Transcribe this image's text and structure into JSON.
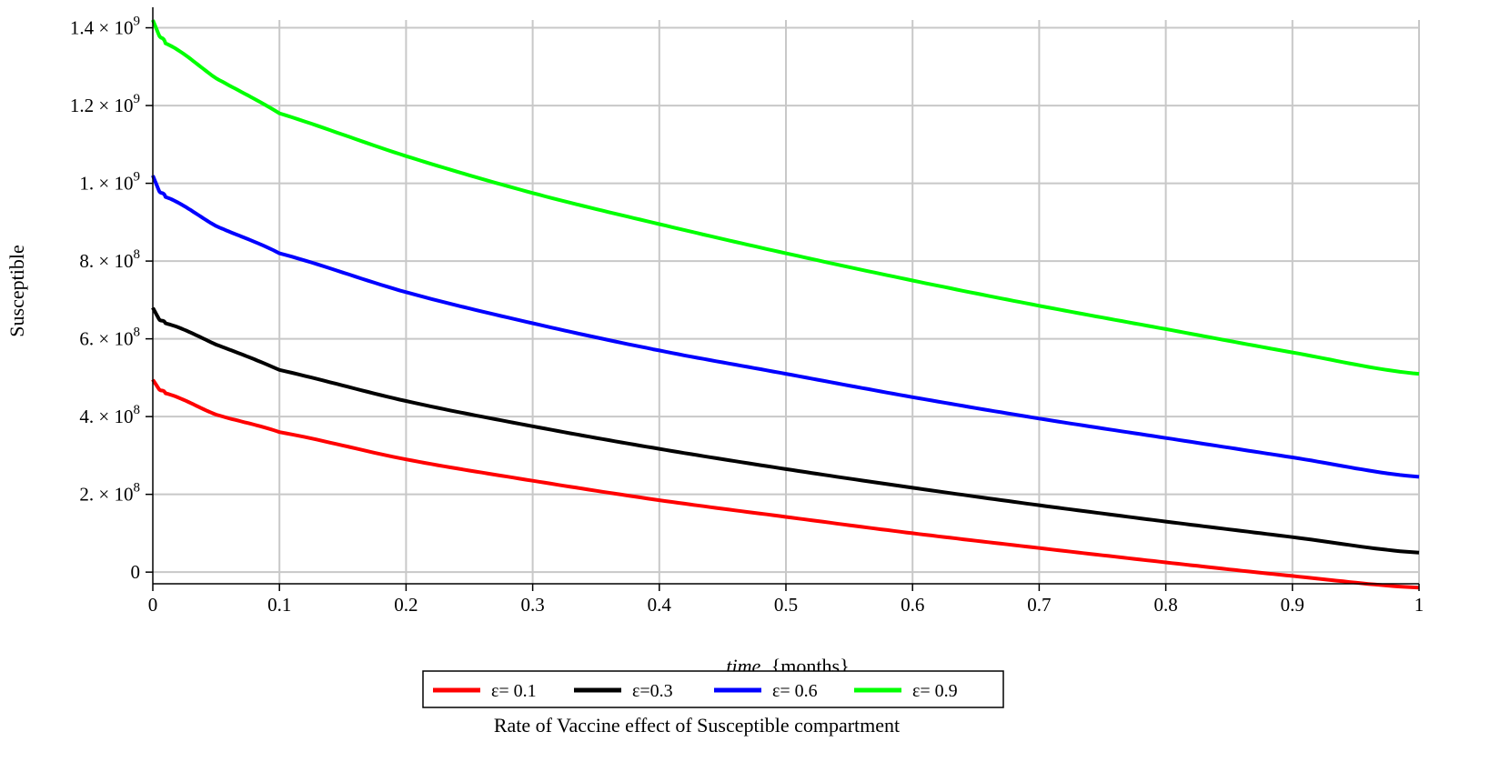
{
  "chart_data": {
    "type": "line",
    "title": "",
    "xlabel": "time {months}",
    "xlabel_parts": {
      "main": "time",
      "unit": "{months}"
    },
    "ylabel": "Susceptible",
    "xlim": [
      0,
      1
    ],
    "ylim": [
      -30000000.0,
      1420000000.0
    ],
    "grid": true,
    "x_ticks": [
      0,
      0.1,
      0.2,
      0.3,
      0.4,
      0.5,
      0.6,
      0.7,
      0.8,
      0.9,
      1
    ],
    "x_tick_labels": [
      "0",
      "0.1",
      "0.2",
      "0.3",
      "0.4",
      "0.5",
      "0.6",
      "0.7",
      "0.8",
      "0.9",
      "1"
    ],
    "y_ticks": [
      0,
      200000000.0,
      400000000.0,
      600000000.0,
      800000000.0,
      1000000000.0,
      1200000000.0,
      1400000000.0
    ],
    "y_tick_labels": [
      {
        "mant": "0",
        "exp": ""
      },
      {
        "mant": "2. × 10",
        "exp": "8"
      },
      {
        "mant": "4. × 10",
        "exp": "8"
      },
      {
        "mant": "6. × 10",
        "exp": "8"
      },
      {
        "mant": "8. × 10",
        "exp": "8"
      },
      {
        "mant": "1. × 10",
        "exp": "9"
      },
      {
        "mant": "1.2 × 10",
        "exp": "9"
      },
      {
        "mant": "1.4 × 10",
        "exp": "9"
      }
    ],
    "legend_title": "Rate of Vaccine effect of Susceptible compartment",
    "legend_position": "bottom",
    "x": [
      0,
      0.005,
      0.01,
      0.05,
      0.1,
      0.2,
      0.3,
      0.4,
      0.5,
      0.6,
      0.7,
      0.8,
      0.9,
      1.0
    ],
    "series": [
      {
        "name": "ε= 0.1",
        "color": "#ff0000",
        "values": [
          495000000.0,
          470000000.0,
          460000000.0,
          405000000.0,
          360000000.0,
          290000000.0,
          235000000.0,
          185000000.0,
          142000000.0,
          100000000.0,
          62000000.0,
          25000000.0,
          -10000000.0,
          -40000000.0
        ]
      },
      {
        "name": "ε=0.3",
        "color": "#000000",
        "values": [
          680000000.0,
          650000000.0,
          640000000.0,
          585000000.0,
          520000000.0,
          440000000.0,
          375000000.0,
          317000000.0,
          265000000.0,
          217000000.0,
          172000000.0,
          130000000.0,
          90000000.0,
          50000000.0
        ]
      },
      {
        "name": "ε= 0.6",
        "color": "#0000ff",
        "values": [
          1020000000.0,
          980000000.0,
          965000000.0,
          890000000.0,
          820000000.0,
          720000000.0,
          640000000.0,
          570000000.0,
          510000000.0,
          450000000.0,
          395000000.0,
          345000000.0,
          295000000.0,
          245000000.0
        ]
      },
      {
        "name": "ε= 0.9",
        "color": "#00ff00",
        "values": [
          1420000000.0,
          1380000000.0,
          1360000000.0,
          1270000000.0,
          1180000000.0,
          1070000000.0,
          975000000.0,
          895000000.0,
          820000000.0,
          750000000.0,
          685000000.0,
          625000000.0,
          565000000.0,
          510000000.0
        ]
      }
    ]
  }
}
